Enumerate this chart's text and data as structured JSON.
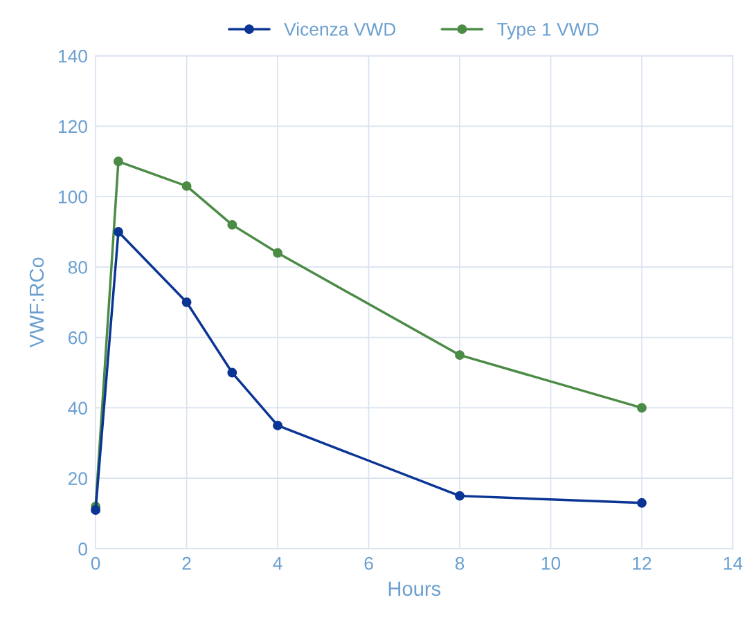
{
  "chart_data": {
    "type": "line",
    "xlabel": "Hours",
    "ylabel": "VWF:RCo",
    "series": [
      {
        "name": "Vicenza VWD",
        "color": "#0a3595",
        "x": [
          0,
          0.5,
          2,
          3,
          4,
          8,
          12
        ],
        "values": [
          11,
          90,
          70,
          50,
          35,
          15,
          13
        ]
      },
      {
        "name": "Type 1 VWD",
        "color": "#4b8b45",
        "x": [
          0,
          0.5,
          2,
          3,
          4,
          8,
          12
        ],
        "values": [
          12,
          110,
          103,
          92,
          84,
          55,
          40
        ]
      }
    ],
    "xlim": [
      0,
      14
    ],
    "xticks": [
      0,
      2,
      4,
      6,
      8,
      10,
      12,
      14
    ],
    "ylim": [
      0,
      140
    ],
    "yticks": [
      0,
      20,
      40,
      60,
      80,
      100,
      120,
      140
    ],
    "grid": true,
    "legend": "top",
    "marker": "circle",
    "line_style": "solid"
  }
}
